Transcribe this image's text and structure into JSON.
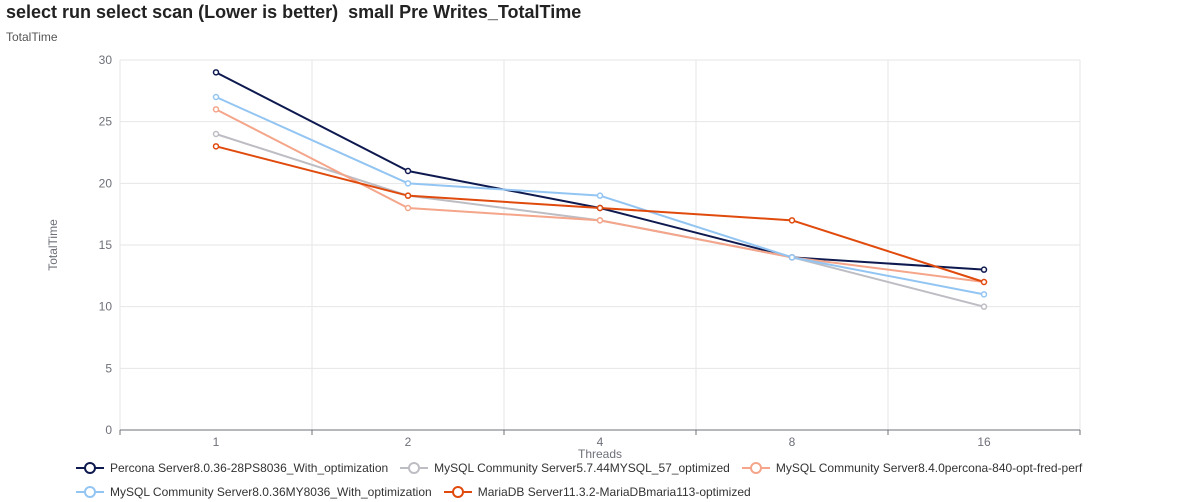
{
  "chart_data": {
    "type": "line",
    "title": "select run select scan (Lower is better)  small Pre Writes_TotalTime",
    "subtitle": "TotalTime",
    "xlabel": "Threads",
    "ylabel": "TotalTime",
    "categories": [
      "1",
      "2",
      "4",
      "8",
      "16"
    ],
    "ylim": [
      0,
      30
    ],
    "yticks": [
      0,
      5,
      10,
      15,
      20,
      25,
      30
    ],
    "grid": true,
    "legend_position": "bottom",
    "series": [
      {
        "name": "Percona Server8.0.36-28PS8036_With_optimization",
        "color": "#0e1a4f",
        "values": [
          29,
          21,
          18,
          14,
          13
        ]
      },
      {
        "name": "MySQL Community Server5.7.44MYSQL_57_optimized",
        "color": "#bdbdc4",
        "values": [
          24,
          19,
          17,
          14,
          10
        ]
      },
      {
        "name": "MySQL Community Server8.4.0percona-840-opt-fred-perf",
        "color": "#f4a58a",
        "values": [
          26,
          18,
          17,
          14,
          12
        ]
      },
      {
        "name": "MySQL Community Server8.0.36MY8036_With_optimization",
        "color": "#93c5f3",
        "values": [
          27,
          20,
          19,
          14,
          11
        ]
      },
      {
        "name": "MariaDB Server11.3.2-MariaDBmaria113-optimized",
        "color": "#e04a0c",
        "values": [
          23,
          19,
          18,
          17,
          12
        ]
      }
    ]
  }
}
